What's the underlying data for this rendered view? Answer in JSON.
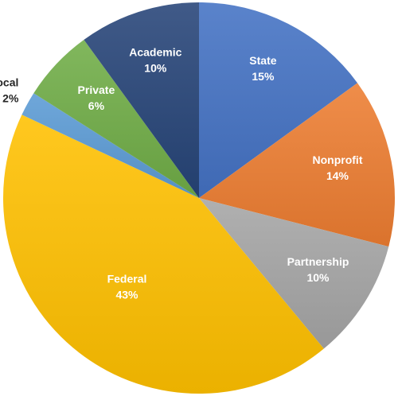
{
  "chart_data": {
    "type": "pie",
    "title": "",
    "start_angle_deg": 0,
    "direction": "clockwise",
    "slices": [
      {
        "label": "State",
        "value": 15,
        "display": "15%",
        "color": "#4472C4",
        "label_style": "inside"
      },
      {
        "label": "Nonprofit",
        "value": 14,
        "display": "14%",
        "color": "#ED7D31",
        "label_style": "inside"
      },
      {
        "label": "Partnership",
        "value": 10,
        "display": "10%",
        "color": "#A5A5A5",
        "label_style": "inside"
      },
      {
        "label": "Federal",
        "value": 43,
        "display": "43%",
        "color": "#FFC000",
        "label_style": "inside"
      },
      {
        "label": "Local",
        "value": 2,
        "display": "2%",
        "color": "#5B9BD5",
        "label_style": "outside"
      },
      {
        "label": "Private",
        "value": 6,
        "display": "6%",
        "color": "#70AD47",
        "label_style": "inside"
      },
      {
        "label": "Academic",
        "value": 10,
        "display": "10%",
        "color": "#264478",
        "label_style": "inside"
      }
    ]
  }
}
